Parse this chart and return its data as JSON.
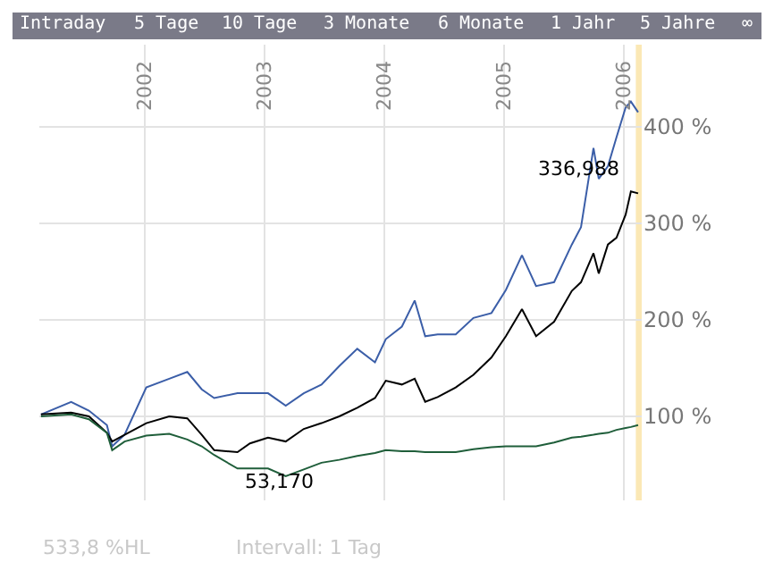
{
  "chart_data": {
    "type": "line",
    "x": [
      "2001-02-19",
      "2001-05-22",
      "2001-07-15",
      "2001-09-08",
      "2001-09-24",
      "2001-11-01",
      "2002-01-06",
      "2002-03-17",
      "2002-05-11",
      "2002-06-24",
      "2002-08-01",
      "2002-10-11",
      "2002-11-18",
      "2003-01-12",
      "2003-03-07",
      "2003-05-01",
      "2003-06-24",
      "2003-08-17",
      "2003-10-11",
      "2003-12-04",
      "2004-01-06",
      "2004-02-24",
      "2004-04-03",
      "2004-05-05",
      "2004-06-12",
      "2004-08-06",
      "2004-09-29",
      "2004-11-23",
      "2005-01-06",
      "2005-02-24",
      "2005-04-08",
      "2005-06-02",
      "2005-07-26",
      "2005-08-23",
      "2005-09-30",
      "2005-10-16",
      "2005-11-13",
      "2005-12-09",
      "2006-01-06",
      "2006-01-22",
      "2006-02-13"
    ],
    "series": [
      {
        "color": "#3b5ea8",
        "values": [
          102,
          115,
          106,
          91,
          69,
          81,
          130,
          139,
          146,
          128,
          119,
          124,
          124,
          124,
          111,
          124,
          133,
          152,
          170,
          156,
          180,
          193,
          220,
          183,
          185,
          185,
          202,
          207,
          231,
          267,
          235,
          239,
          278,
          296,
          378,
          346,
          359,
          389,
          420,
          426,
          415
        ]
      },
      {
        "color": "#000000",
        "values": [
          102,
          104,
          100,
          83,
          74,
          81,
          93,
          100,
          98,
          81,
          65,
          63,
          72,
          78,
          74,
          87,
          93,
          100,
          109,
          119,
          137,
          133,
          139,
          115,
          120,
          130,
          143,
          161,
          183,
          211,
          183,
          198,
          230,
          239,
          269,
          248,
          278,
          285,
          309,
          333,
          331
        ]
      },
      {
        "color": "#1f5e3a",
        "values": [
          100,
          102,
          97,
          83,
          65,
          74,
          80,
          82,
          76,
          69,
          60,
          46,
          46,
          46,
          38,
          45,
          52,
          55,
          59,
          62,
          65,
          64,
          64,
          63,
          63,
          63,
          66,
          68,
          69,
          69,
          69,
          73,
          78,
          79,
          81,
          82,
          83,
          86,
          88,
          89,
          91
        ]
      }
    ],
    "xlim": [
      "2001-02-14",
      "2006-02-24"
    ],
    "xticks": [
      {
        "value": "2002-01-01",
        "label": "2002"
      },
      {
        "value": "2003-01-01",
        "label": "2003"
      },
      {
        "value": "2004-01-01",
        "label": "2004"
      },
      {
        "value": "2005-01-01",
        "label": "2005"
      },
      {
        "value": "2006-01-01",
        "label": "2006"
      }
    ],
    "ylim": [
      13,
      485
    ],
    "yticks": [
      {
        "value": 100,
        "label": "100 %"
      },
      {
        "value": 200,
        "label": "200 %"
      },
      {
        "value": 300,
        "label": "300 %"
      },
      {
        "value": 400,
        "label": "400 %"
      }
    ],
    "grid": true,
    "line_style": "solid",
    "bands": [
      {
        "axis": "x",
        "from": "2006-02-06",
        "to": "2006-02-24",
        "color": "#fbe8b5"
      }
    ],
    "annotations": [
      "Intraday",
      "5 Tage",
      "10 Tage",
      "3 Monate",
      "6 Monate",
      "1 Jahr",
      "5 Jahre",
      "∞",
      {
        "text": "336,988",
        "x": "2006-01-22",
        "y": 337
      },
      {
        "text": "53,170",
        "x": "2002-10-11",
        "y": 63
      },
      "533,8 %HL",
      "Intervall: 1 Tag"
    ]
  }
}
